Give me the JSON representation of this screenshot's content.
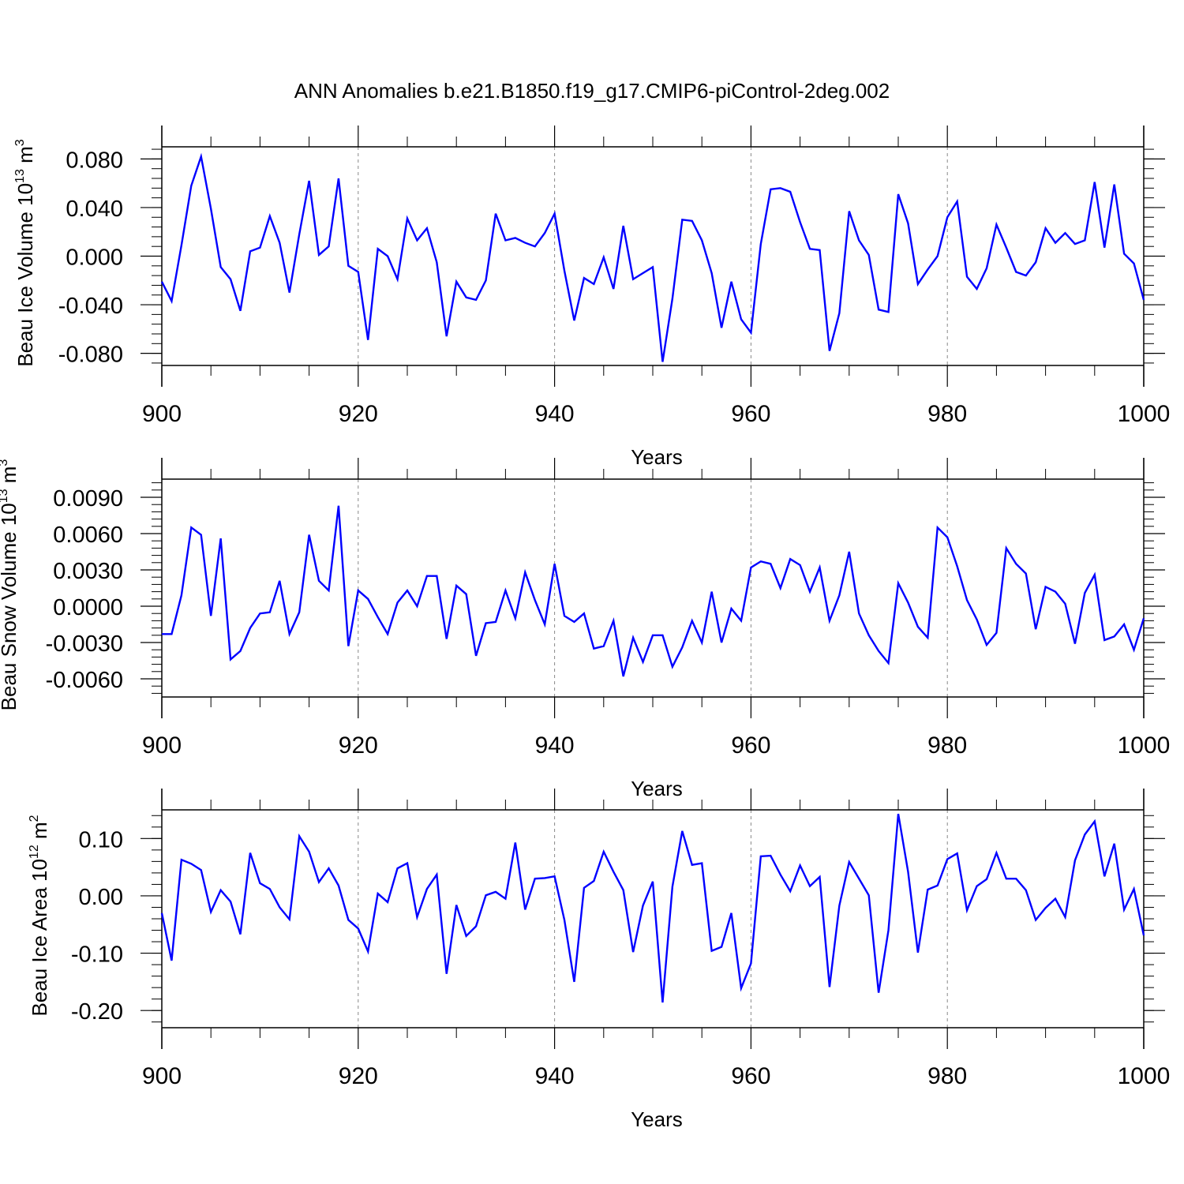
{
  "title": "ANN Anomalies b.e21.B1850.f19_g17.CMIP6-piControl-2deg.002",
  "colors": {
    "series": "#0000ff",
    "axis": "#000000",
    "grid": "#888888"
  },
  "chart_data": [
    {
      "type": "line",
      "ylabel": {
        "text": "Beau Ice Volume 10",
        "sup": "13",
        "unit": " m",
        "unit_sup": "3"
      },
      "xlabel": "Years",
      "xlim": [
        900,
        1000
      ],
      "ylim": [
        -0.09,
        0.09
      ],
      "y_ticks": [
        -0.08,
        -0.04,
        0.0,
        0.04,
        0.08
      ],
      "y_tick_labels": [
        "-0.080",
        "-0.040",
        "0.000",
        "0.040",
        "0.080"
      ],
      "x_ticks": [
        900,
        920,
        940,
        960,
        980,
        1000
      ],
      "x_tick_labels": [
        "900",
        "920",
        "940",
        "960",
        "980",
        "1000"
      ],
      "grid_x": [
        920,
        940,
        960,
        980
      ],
      "x_start": 900,
      "values": [
        -0.021,
        -0.037,
        0.009,
        0.058,
        0.082,
        0.039,
        -0.009,
        -0.019,
        -0.045,
        0.004,
        0.007,
        0.033,
        0.011,
        -0.03,
        0.018,
        0.062,
        0.001,
        0.008,
        0.064,
        -0.008,
        -0.013,
        -0.069,
        0.006,
        0.0,
        -0.019,
        0.031,
        0.013,
        0.023,
        -0.005,
        -0.066,
        -0.021,
        -0.034,
        -0.036,
        -0.02,
        0.035,
        0.013,
        0.015,
        0.011,
        0.008,
        0.019,
        0.035,
        -0.012,
        -0.053,
        -0.018,
        -0.023,
        -0.001,
        -0.027,
        0.025,
        -0.019,
        -0.014,
        -0.009,
        -0.087,
        -0.035,
        0.03,
        0.029,
        0.013,
        -0.014,
        -0.059,
        -0.021,
        -0.052,
        -0.063,
        0.01,
        0.055,
        0.056,
        0.053,
        0.028,
        0.006,
        0.005,
        -0.078,
        -0.047,
        0.037,
        0.013,
        0.001,
        -0.044,
        -0.046,
        0.051,
        0.027,
        -0.023,
        -0.011,
        0.0,
        0.032,
        0.045,
        -0.017,
        -0.027,
        -0.01,
        0.026,
        0.007,
        -0.013,
        -0.016,
        -0.005,
        0.023,
        0.011,
        0.019,
        0.01,
        0.013,
        0.061,
        0.007,
        0.059,
        0.002,
        -0.006,
        -0.036
      ]
    },
    {
      "type": "line",
      "ylabel": {
        "text": "Beau Snow Volume 10",
        "sup": "13",
        "unit": " m",
        "unit_sup": "3"
      },
      "xlabel": "Years",
      "xlim": [
        900,
        1000
      ],
      "ylim": [
        -0.0075,
        0.0105
      ],
      "y_ticks": [
        -0.006,
        -0.003,
        0.0,
        0.003,
        0.006,
        0.009
      ],
      "y_tick_labels": [
        "-0.0060",
        "-0.0030",
        "0.0000",
        "0.0030",
        "0.0060",
        "0.0090"
      ],
      "x_ticks": [
        900,
        920,
        940,
        960,
        980,
        1000
      ],
      "x_tick_labels": [
        "900",
        "920",
        "940",
        "960",
        "980",
        "1000"
      ],
      "grid_x": [
        920,
        940,
        960,
        980
      ],
      "x_start": 900,
      "values": [
        -0.0023,
        -0.0023,
        0.0009,
        0.0065,
        0.0059,
        -0.0008,
        0.0056,
        -0.0044,
        -0.0037,
        -0.0018,
        -0.0006,
        -0.0005,
        0.0021,
        -0.0023,
        -0.0005,
        0.0059,
        0.0021,
        0.0013,
        0.0083,
        -0.0033,
        0.0013,
        0.0006,
        -0.0009,
        -0.0023,
        0.0003,
        0.0013,
        0.0,
        0.0025,
        0.0025,
        -0.0027,
        0.0017,
        0.001,
        -0.0041,
        -0.0014,
        -0.0013,
        0.0013,
        -0.001,
        0.0028,
        0.0005,
        -0.0015,
        0.0035,
        -0.0008,
        -0.0013,
        -0.0006,
        -0.0035,
        -0.0033,
        -0.0012,
        -0.0058,
        -0.0026,
        -0.0046,
        -0.0024,
        -0.0024,
        -0.005,
        -0.0034,
        -0.0012,
        -0.003,
        0.0012,
        -0.003,
        -0.0002,
        -0.0012,
        0.0032,
        0.0037,
        0.0035,
        0.0015,
        0.0039,
        0.0034,
        0.0012,
        0.0032,
        -0.0012,
        0.0009,
        0.0045,
        -0.0006,
        -0.0024,
        -0.0037,
        -0.0047,
        0.0019,
        0.0003,
        -0.0017,
        -0.0026,
        0.0065,
        0.0057,
        0.0033,
        0.0005,
        -0.0011,
        -0.0032,
        -0.0022,
        0.0048,
        0.0035,
        0.0027,
        -0.0019,
        0.0016,
        0.0012,
        0.0002,
        -0.0031,
        0.0011,
        0.0026,
        -0.0028,
        -0.0025,
        -0.0015,
        -0.0036,
        -0.001
      ]
    },
    {
      "type": "line",
      "ylabel": {
        "text": "Beau Ice Area 10",
        "sup": "12",
        "unit": " m",
        "unit_sup": "2"
      },
      "xlabel": "Years",
      "xlim": [
        900,
        1000
      ],
      "ylim": [
        -0.23,
        0.15
      ],
      "y_ticks": [
        -0.2,
        -0.1,
        0.0,
        0.1
      ],
      "y_tick_labels": [
        "-0.20",
        "-0.10",
        "0.00",
        "0.10"
      ],
      "x_ticks": [
        900,
        920,
        940,
        960,
        980,
        1000
      ],
      "x_tick_labels": [
        "900",
        "920",
        "940",
        "960",
        "980",
        "1000"
      ],
      "grid_x": [
        920,
        940,
        960,
        980
      ],
      "x_start": 900,
      "values": [
        -0.03,
        -0.113,
        0.063,
        0.056,
        0.045,
        -0.028,
        0.01,
        -0.01,
        -0.067,
        0.075,
        0.022,
        0.012,
        -0.02,
        -0.041,
        0.104,
        0.077,
        0.024,
        0.048,
        0.018,
        -0.042,
        -0.057,
        -0.097,
        0.004,
        -0.011,
        0.048,
        0.057,
        -0.037,
        0.012,
        0.037,
        -0.136,
        -0.016,
        -0.07,
        -0.053,
        0.001,
        0.007,
        -0.005,
        0.093,
        -0.024,
        0.03,
        0.031,
        0.034,
        -0.042,
        -0.15,
        0.014,
        0.026,
        0.077,
        0.042,
        0.01,
        -0.098,
        -0.017,
        0.025,
        -0.186,
        0.016,
        0.113,
        0.054,
        0.057,
        -0.096,
        -0.089,
        -0.03,
        -0.161,
        -0.118,
        0.069,
        0.07,
        0.037,
        0.008,
        0.053,
        0.017,
        0.033,
        -0.159,
        -0.017,
        0.059,
        0.03,
        0.001,
        -0.169,
        -0.06,
        0.143,
        0.042,
        -0.099,
        0.011,
        0.018,
        0.064,
        0.074,
        -0.025,
        0.017,
        0.029,
        0.075,
        0.03,
        0.03,
        0.01,
        -0.042,
        -0.021,
        -0.005,
        -0.037,
        0.062,
        0.107,
        0.13,
        0.034,
        0.091,
        -0.024,
        0.012,
        -0.069
      ]
    }
  ]
}
